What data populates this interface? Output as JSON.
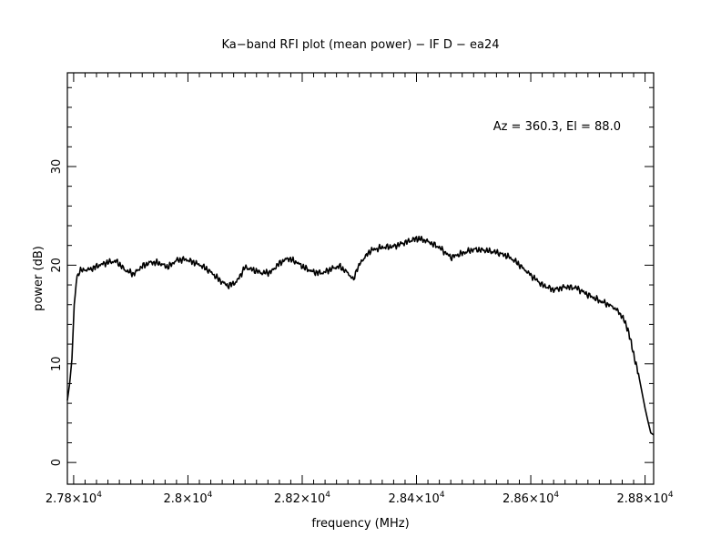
{
  "chart_data": {
    "type": "line",
    "title": "Ka−band RFI plot (mean power) − IF D − ea24",
    "xlabel": "frequency (MHz)",
    "ylabel": "power (dB)",
    "annotation": "Az = 360.3, El = 88.0",
    "xlim": [
      27789,
      28815
    ],
    "ylim": [
      -2.2,
      39.5
    ],
    "x_ticks": [
      {
        "value": 27800,
        "label": "2.78×10",
        "exp": "4"
      },
      {
        "value": 28000,
        "label": "2.8×10",
        "exp": "4"
      },
      {
        "value": 28200,
        "label": "2.82×10",
        "exp": "4"
      },
      {
        "value": 28400,
        "label": "2.84×10",
        "exp": "4"
      },
      {
        "value": 28600,
        "label": "2.86×10",
        "exp": "4"
      },
      {
        "value": 28800,
        "label": "2.88×10",
        "exp": "4"
      }
    ],
    "y_ticks": [
      {
        "value": 0,
        "label": "0"
      },
      {
        "value": 10,
        "label": "10"
      },
      {
        "value": 20,
        "label": "20"
      },
      {
        "value": 30,
        "label": "30"
      }
    ],
    "grid": false,
    "series": [
      {
        "color": "#000000",
        "x": [
          27789,
          27793,
          27797,
          27801,
          27806,
          27812,
          27820,
          27830,
          27845,
          27860,
          27875,
          27890,
          27905,
          27920,
          27935,
          27950,
          27965,
          27980,
          27995,
          28010,
          28025,
          28040,
          28055,
          28070,
          28085,
          28100,
          28115,
          28130,
          28145,
          28160,
          28175,
          28190,
          28205,
          28220,
          28235,
          28250,
          28265,
          28280,
          28290,
          28295,
          28305,
          28320,
          28340,
          28360,
          28380,
          28400,
          28410,
          28420,
          28440,
          28460,
          28480,
          28500,
          28520,
          28540,
          28560,
          28575,
          28590,
          28600,
          28620,
          28640,
          28660,
          28680,
          28700,
          28720,
          28740,
          28750,
          28760,
          28770,
          28780,
          28790,
          28800,
          28805,
          28810,
          28815
        ],
        "y": [
          6.3,
          8.0,
          10.5,
          16.0,
          18.9,
          19.5,
          19.5,
          19.6,
          20.0,
          20.3,
          20.4,
          19.5,
          19.1,
          19.9,
          20.3,
          20.2,
          19.8,
          20.5,
          20.6,
          20.3,
          19.9,
          19.3,
          18.5,
          17.9,
          18.3,
          19.8,
          19.5,
          19.2,
          19.3,
          20.2,
          20.7,
          20.3,
          19.7,
          19.3,
          19.2,
          19.6,
          19.9,
          19.2,
          18.5,
          19.5,
          20.5,
          21.5,
          21.8,
          21.9,
          22.3,
          22.7,
          22.6,
          22.4,
          21.8,
          20.8,
          21.2,
          21.6,
          21.5,
          21.3,
          20.9,
          20.3,
          19.5,
          19.0,
          18.0,
          17.5,
          17.8,
          17.7,
          17.0,
          16.4,
          15.9,
          15.5,
          14.8,
          13.5,
          11.0,
          8.5,
          5.5,
          4.2,
          3.0,
          2.8
        ]
      }
    ]
  }
}
